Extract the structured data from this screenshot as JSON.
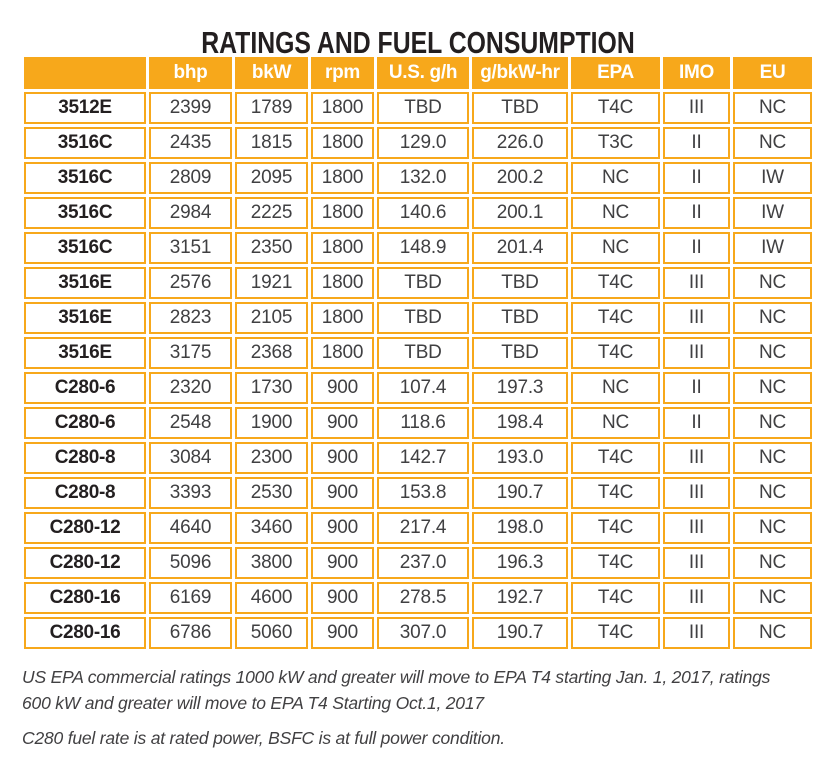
{
  "title": "RATINGS AND FUEL CONSUMPTION",
  "colors": {
    "accent_orange": "#F7A81B",
    "header_text": "#FFFFFF",
    "value_text": "#404042",
    "model_text": "#231F20",
    "title_text": "#231F20",
    "footnote_text": "#414042"
  },
  "table": {
    "columns": [
      "",
      "bhp",
      "bkW",
      "rpm",
      "U.S. g/h",
      "g/bkW-hr",
      "EPA",
      "IMO",
      "EU"
    ],
    "row_keys": [
      "model",
      "bhp",
      "bkw",
      "rpm",
      "us_gh",
      "g_bkw_hr",
      "epa",
      "imo",
      "eu"
    ],
    "rows": [
      {
        "model": "3512E",
        "bhp": "2399",
        "bkw": "1789",
        "rpm": "1800",
        "us_gh": "TBD",
        "g_bkw_hr": "TBD",
        "epa": "T4C",
        "imo": "III",
        "eu": "NC"
      },
      {
        "model": "3516C",
        "bhp": "2435",
        "bkw": "1815",
        "rpm": "1800",
        "us_gh": "129.0",
        "g_bkw_hr": "226.0",
        "epa": "T3C",
        "imo": "II",
        "eu": "NC"
      },
      {
        "model": "3516C",
        "bhp": "2809",
        "bkw": "2095",
        "rpm": "1800",
        "us_gh": "132.0",
        "g_bkw_hr": "200.2",
        "epa": "NC",
        "imo": "II",
        "eu": "IW"
      },
      {
        "model": "3516C",
        "bhp": "2984",
        "bkw": "2225",
        "rpm": "1800",
        "us_gh": "140.6",
        "g_bkw_hr": "200.1",
        "epa": "NC",
        "imo": "II",
        "eu": "IW"
      },
      {
        "model": "3516C",
        "bhp": "3151",
        "bkw": "2350",
        "rpm": "1800",
        "us_gh": "148.9",
        "g_bkw_hr": "201.4",
        "epa": "NC",
        "imo": "II",
        "eu": "IW"
      },
      {
        "model": "3516E",
        "bhp": "2576",
        "bkw": "1921",
        "rpm": "1800",
        "us_gh": "TBD",
        "g_bkw_hr": "TBD",
        "epa": "T4C",
        "imo": "III",
        "eu": "NC"
      },
      {
        "model": "3516E",
        "bhp": "2823",
        "bkw": "2105",
        "rpm": "1800",
        "us_gh": "TBD",
        "g_bkw_hr": "TBD",
        "epa": "T4C",
        "imo": "III",
        "eu": "NC"
      },
      {
        "model": "3516E",
        "bhp": "3175",
        "bkw": "2368",
        "rpm": "1800",
        "us_gh": "TBD",
        "g_bkw_hr": "TBD",
        "epa": "T4C",
        "imo": "III",
        "eu": "NC"
      },
      {
        "model": "C280-6",
        "bhp": "2320",
        "bkw": "1730",
        "rpm": "900",
        "us_gh": "107.4",
        "g_bkw_hr": "197.3",
        "epa": "NC",
        "imo": "II",
        "eu": "NC"
      },
      {
        "model": "C280-6",
        "bhp": "2548",
        "bkw": "1900",
        "rpm": "900",
        "us_gh": "118.6",
        "g_bkw_hr": "198.4",
        "epa": "NC",
        "imo": "II",
        "eu": "NC"
      },
      {
        "model": "C280-8",
        "bhp": "3084",
        "bkw": "2300",
        "rpm": "900",
        "us_gh": "142.7",
        "g_bkw_hr": "193.0",
        "epa": "T4C",
        "imo": "III",
        "eu": "NC"
      },
      {
        "model": "C280-8",
        "bhp": "3393",
        "bkw": "2530",
        "rpm": "900",
        "us_gh": "153.8",
        "g_bkw_hr": "190.7",
        "epa": "T4C",
        "imo": "III",
        "eu": "NC"
      },
      {
        "model": "C280-12",
        "bhp": "4640",
        "bkw": "3460",
        "rpm": "900",
        "us_gh": "217.4",
        "g_bkw_hr": "198.0",
        "epa": "T4C",
        "imo": "III",
        "eu": "NC"
      },
      {
        "model": "C280-12",
        "bhp": "5096",
        "bkw": "3800",
        "rpm": "900",
        "us_gh": "237.0",
        "g_bkw_hr": "196.3",
        "epa": "T4C",
        "imo": "III",
        "eu": "NC"
      },
      {
        "model": "C280-16",
        "bhp": "6169",
        "bkw": "4600",
        "rpm": "900",
        "us_gh": "278.5",
        "g_bkw_hr": "192.7",
        "epa": "T4C",
        "imo": "III",
        "eu": "NC"
      },
      {
        "model": "C280-16",
        "bhp": "6786",
        "bkw": "5060",
        "rpm": "900",
        "us_gh": "307.0",
        "g_bkw_hr": "190.7",
        "epa": "T4C",
        "imo": "III",
        "eu": "NC"
      }
    ]
  },
  "footnotes": [
    "US EPA commercial ratings 1000 kW and greater will move to EPA T4 starting Jan. 1, 2017, ratings",
    "600 kW and greater will move to EPA T4 Starting Oct.1, 2017",
    "C280 fuel rate is at rated power, BSFC is at full power condition."
  ]
}
